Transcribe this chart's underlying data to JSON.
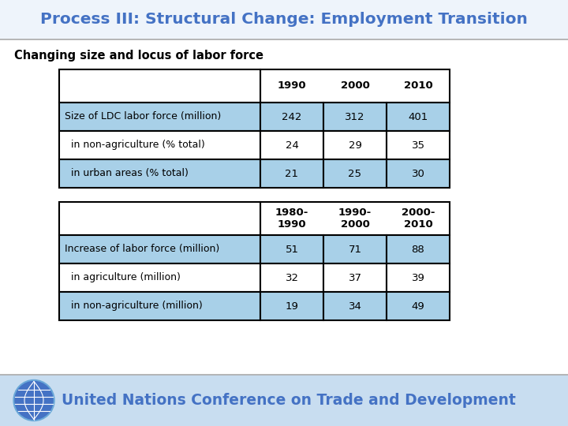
{
  "title": "Process III: Structural Change: Employment Transition",
  "subtitle": "Changing size and locus of labor force",
  "title_color": "#4472C4",
  "subtitle_color": "#000000",
  "table1": {
    "col_headers": [
      "1990",
      "2000",
      "2010"
    ],
    "rows": [
      {
        "label": "Size of LDC labor force (million)",
        "values": [
          "242",
          "312",
          "401"
        ],
        "shaded": true
      },
      {
        "label": "  in non-agriculture (% total)",
        "values": [
          "24",
          "29",
          "35"
        ],
        "shaded": false
      },
      {
        "label": "  in urban areas (% total)",
        "values": [
          "21",
          "25",
          "30"
        ],
        "shaded": true
      }
    ]
  },
  "table2": {
    "col_headers": [
      "1980-\n1990",
      "1990-\n2000",
      "2000-\n2010"
    ],
    "rows": [
      {
        "label": "Increase of labor force (million)",
        "values": [
          "51",
          "71",
          "88"
        ],
        "shaded": true
      },
      {
        "label": "  in agriculture (million)",
        "values": [
          "32",
          "37",
          "39"
        ],
        "shaded": false
      },
      {
        "label": "  in non-agriculture (million)",
        "values": [
          "19",
          "34",
          "49"
        ],
        "shaded": true
      }
    ]
  },
  "light_blue": "#A8D0E8",
  "white": "#FFFFFF",
  "border_color": "#000000",
  "footer_bg": "#C8DDF0",
  "unctad_color": "#4472C4",
  "footer_text": "United Nations Conference on Trade and Development",
  "title_bar_bg": "#EEF4FB",
  "title_bar_border": "#AAAAAA"
}
